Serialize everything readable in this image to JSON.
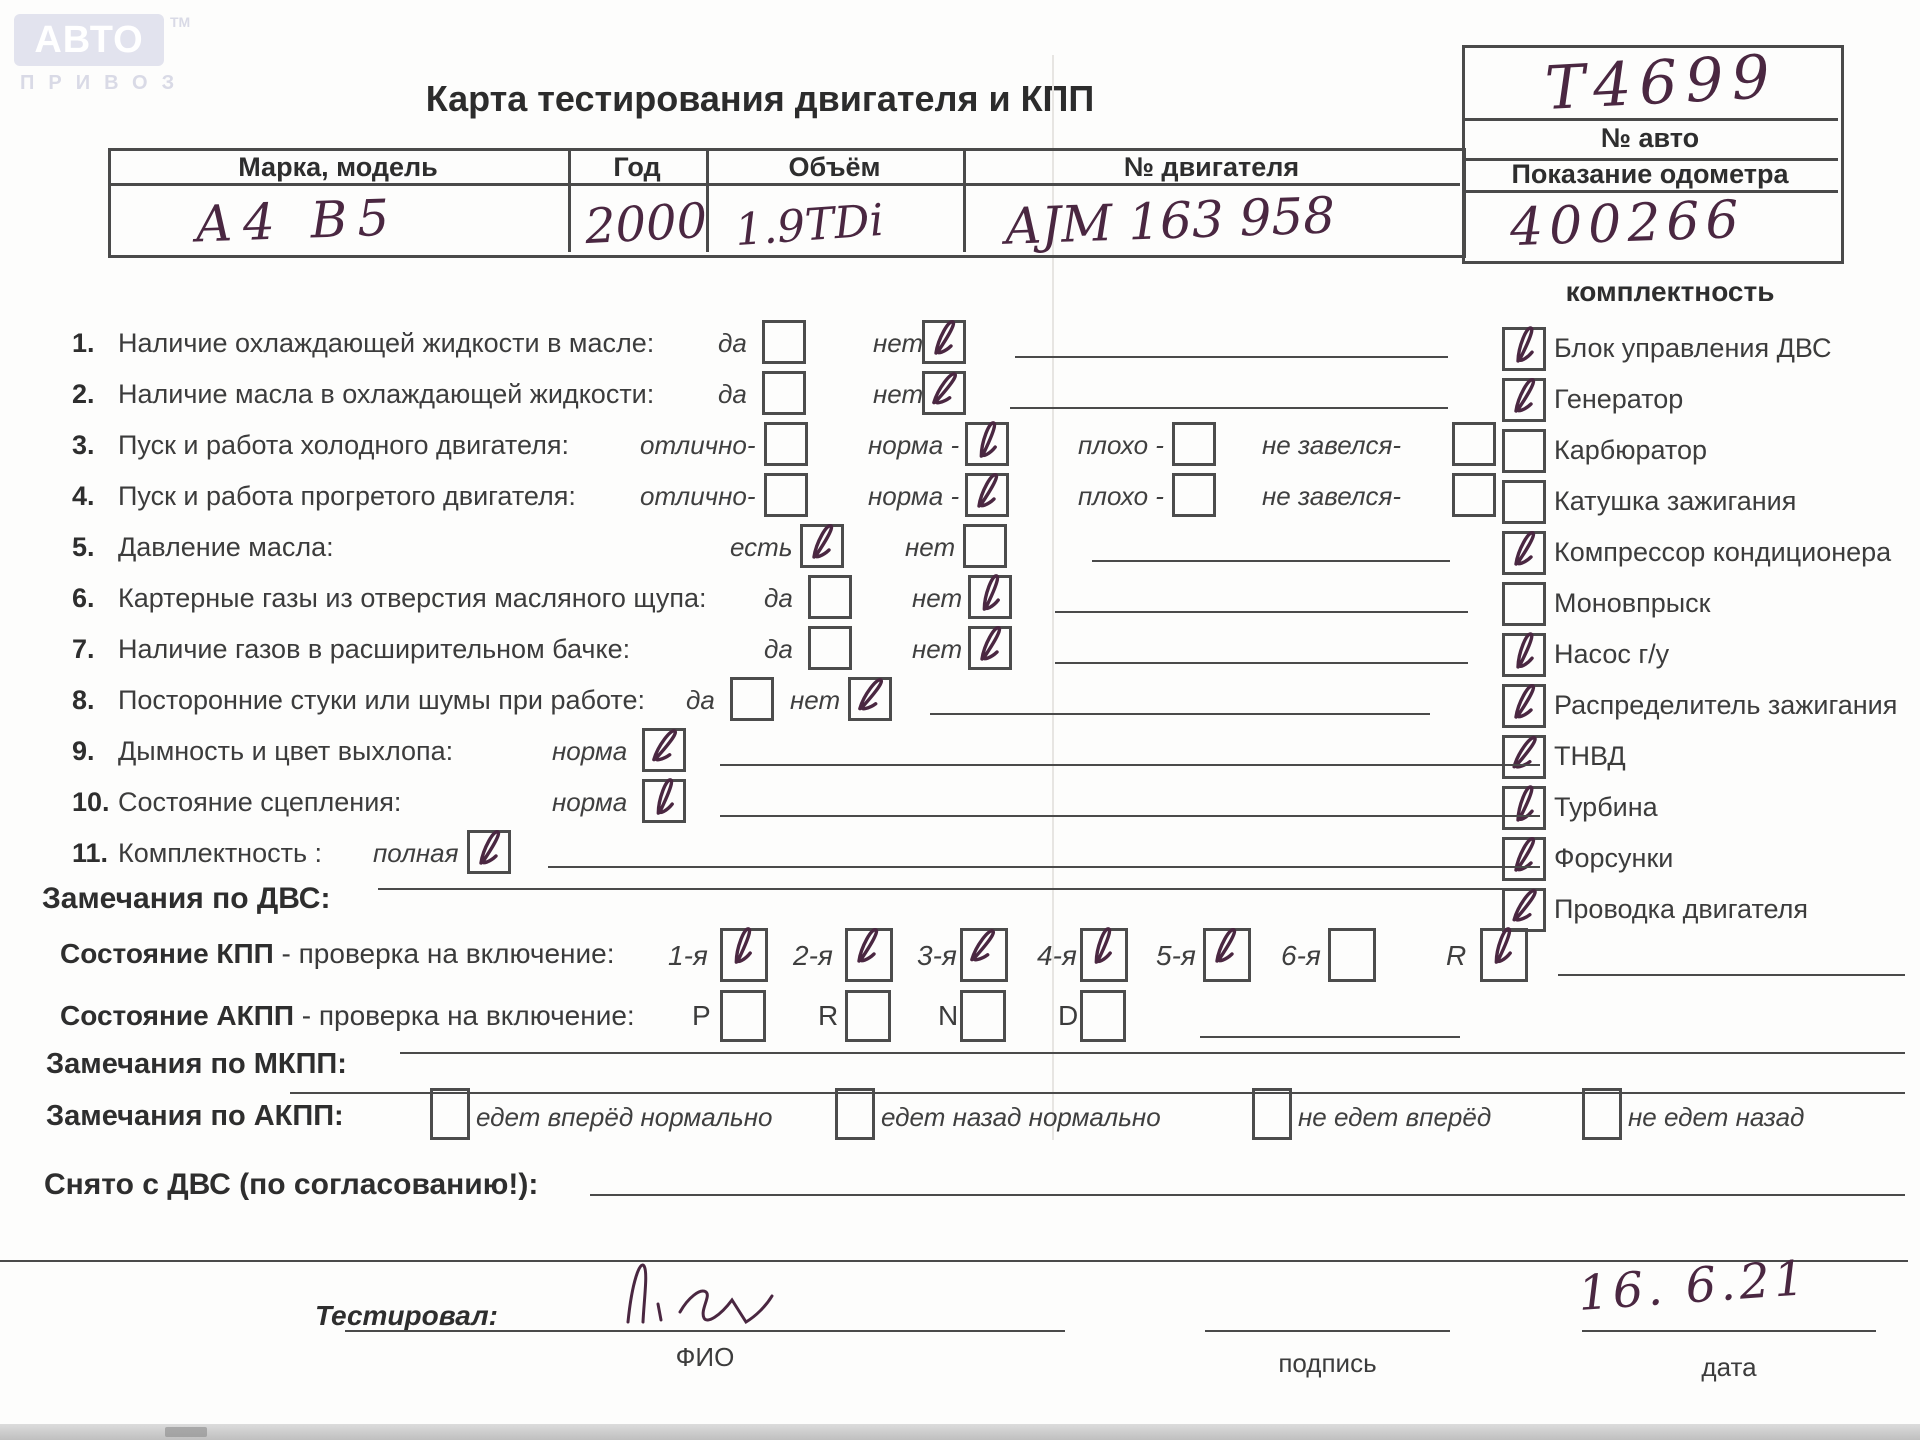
{
  "logo": {
    "text": "АВТО",
    "tm": "ТМ",
    "sub": "ПРИВОЗ"
  },
  "title": "Карта тестирования двигателя  и КПП",
  "car_box": {
    "number": "T4699",
    "label_no": "№ авто",
    "label_odo": "Показание одометра",
    "odometer": "400266"
  },
  "head_table": {
    "cols": [
      "Марка, модель",
      "Год",
      "Объём",
      "№ двигателя"
    ],
    "values": [
      "А4 В5",
      "2000",
      "1.9TDi",
      "AJM 163 958"
    ]
  },
  "equipment": {
    "title": "комплектность",
    "items": [
      {
        "label": "Блок управления ДВС",
        "checked": true
      },
      {
        "label": "Генератор",
        "checked": true
      },
      {
        "label": "Карбюратор",
        "checked": false
      },
      {
        "label": "Катушка зажигания",
        "checked": false
      },
      {
        "label": "Компрессор кондиционера",
        "checked": true
      },
      {
        "label": "Моновпрыск",
        "checked": false
      },
      {
        "label": "Насос г/у",
        "checked": true
      },
      {
        "label": "Распределитель зажигания",
        "checked": true
      },
      {
        "label": "ТНВД",
        "checked": true
      },
      {
        "label": "Турбина",
        "checked": true
      },
      {
        "label": "Форсунки",
        "checked": true
      },
      {
        "label": "Проводка двигателя",
        "checked": true
      }
    ]
  },
  "checks": [
    {
      "num": "1.",
      "label": "Наличие охлаждающей жидкости в масле:",
      "options": [
        {
          "label": "да",
          "checked": false
        },
        {
          "label": "нет",
          "checked": true
        }
      ]
    },
    {
      "num": "2.",
      "label": "Наличие масла в охлаждающей жидкости:",
      "options": [
        {
          "label": "да",
          "checked": false
        },
        {
          "label": "нет",
          "checked": true
        }
      ]
    },
    {
      "num": "3.",
      "label": "Пуск и работа холодного двигателя:",
      "options": [
        {
          "label": "отлично-",
          "checked": false
        },
        {
          "label": "норма -",
          "checked": true
        },
        {
          "label": "плохо -",
          "checked": false
        },
        {
          "label": "не завелся-",
          "checked": false
        }
      ]
    },
    {
      "num": "4.",
      "label": "Пуск и работа прогретого двигателя:",
      "options": [
        {
          "label": "отлично-",
          "checked": false
        },
        {
          "label": "норма -",
          "checked": true
        },
        {
          "label": "плохо -",
          "checked": false
        },
        {
          "label": "не завелся-",
          "checked": false
        }
      ]
    },
    {
      "num": "5.",
      "label": "Давление масла:",
      "options": [
        {
          "label": "есть",
          "checked": true
        },
        {
          "label": "нет",
          "checked": false
        }
      ]
    },
    {
      "num": "6.",
      "label": "Картерные газы из отверстия масляного щупа:",
      "options": [
        {
          "label": "да",
          "checked": false
        },
        {
          "label": "нет",
          "checked": true
        }
      ]
    },
    {
      "num": "7.",
      "label": "Наличие газов в расширительном бачке:",
      "options": [
        {
          "label": "да",
          "checked": false
        },
        {
          "label": "нет",
          "checked": true
        }
      ]
    },
    {
      "num": "8.",
      "label": "Посторонние стуки или шумы при работе:",
      "options": [
        {
          "label": "да",
          "checked": false
        },
        {
          "label": "нет",
          "checked": true
        }
      ]
    },
    {
      "num": "9.",
      "label": "Дымность и цвет выхлопа:",
      "options": [
        {
          "label": "норма",
          "checked": true
        }
      ]
    },
    {
      "num": "10.",
      "label": "Состояние сцепления:",
      "options": [
        {
          "label": "норма",
          "checked": true
        }
      ]
    },
    {
      "num": "11.",
      "label": "Комплектность :",
      "options": [
        {
          "label": "полная",
          "checked": true
        }
      ]
    }
  ],
  "dvs_remarks_label": "Замечания по ДВС:",
  "kpp": {
    "label_bold": "Состояние КПП",
    "label_rest": " - проверка на включение:",
    "options": [
      {
        "label": "1-я",
        "checked": true
      },
      {
        "label": "2-я",
        "checked": true
      },
      {
        "label": "3-я",
        "checked": true
      },
      {
        "label": "4-я",
        "checked": true
      },
      {
        "label": "5-я",
        "checked": true
      },
      {
        "label": "6-я",
        "checked": false
      },
      {
        "label": "R",
        "checked": true
      }
    ]
  },
  "akpp": {
    "label_bold": "Состояние АКПП",
    "label_rest": " - проверка на включение:",
    "options": [
      {
        "label": "P",
        "checked": false
      },
      {
        "label": "R",
        "checked": false
      },
      {
        "label": "N",
        "checked": false
      },
      {
        "label": "D",
        "checked": false
      }
    ]
  },
  "mkpp_remarks_label": "Замечания по МКПП:",
  "akpp_remarks": {
    "label": "Замечания по АКПП:",
    "options": [
      {
        "label": "едет вперёд нормально",
        "checked": false
      },
      {
        "label": "едет назад нормально",
        "checked": false
      },
      {
        "label": "не едет вперёд",
        "checked": false
      },
      {
        "label": "не едет назад",
        "checked": false
      }
    ]
  },
  "removed_label": "Снято с ДВС (по согласованию!):",
  "footer": {
    "tested_label": "Тестировал:",
    "fio_label": "ФИО",
    "sign_label": "подпись",
    "date_label": "дата",
    "date_value": "16. 6.21"
  }
}
